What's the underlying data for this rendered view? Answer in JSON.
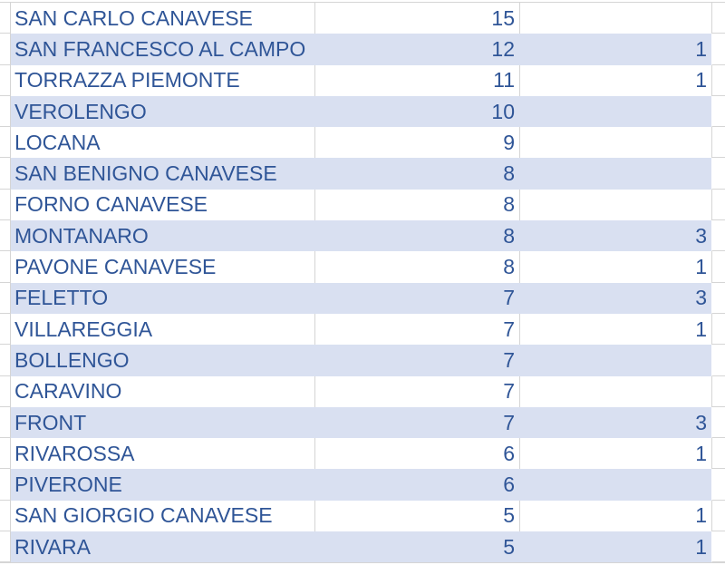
{
  "colors": {
    "band_fill": "#D9E0F1",
    "text": "#2F5597",
    "gridline": "#D5D5D5"
  },
  "table": {
    "rows": [
      {
        "name": "SAN CARLO CANAVESE",
        "value1": "15",
        "value2": ""
      },
      {
        "name": "SAN FRANCESCO AL CAMPO",
        "value1": "12",
        "value2": "1"
      },
      {
        "name": "TORRAZZA PIEMONTE",
        "value1": "11",
        "value2": "1"
      },
      {
        "name": "VEROLENGO",
        "value1": "10",
        "value2": ""
      },
      {
        "name": "LOCANA",
        "value1": "9",
        "value2": ""
      },
      {
        "name": "SAN BENIGNO CANAVESE",
        "value1": "8",
        "value2": ""
      },
      {
        "name": "FORNO CANAVESE",
        "value1": "8",
        "value2": ""
      },
      {
        "name": "MONTANARO",
        "value1": "8",
        "value2": "3"
      },
      {
        "name": "PAVONE CANAVESE",
        "value1": "8",
        "value2": "1"
      },
      {
        "name": "FELETTO",
        "value1": "7",
        "value2": "3"
      },
      {
        "name": "VILLAREGGIA",
        "value1": "7",
        "value2": "1"
      },
      {
        "name": "BOLLENGO",
        "value1": "7",
        "value2": ""
      },
      {
        "name": "CARAVINO",
        "value1": "7",
        "value2": ""
      },
      {
        "name": "FRONT",
        "value1": "7",
        "value2": "3"
      },
      {
        "name": "RIVAROSSA",
        "value1": "6",
        "value2": "1"
      },
      {
        "name": "PIVERONE",
        "value1": "6",
        "value2": ""
      },
      {
        "name": "SAN GIORGIO CANAVESE",
        "value1": "5",
        "value2": "1"
      },
      {
        "name": "RIVARA",
        "value1": "5",
        "value2": "1"
      }
    ]
  }
}
